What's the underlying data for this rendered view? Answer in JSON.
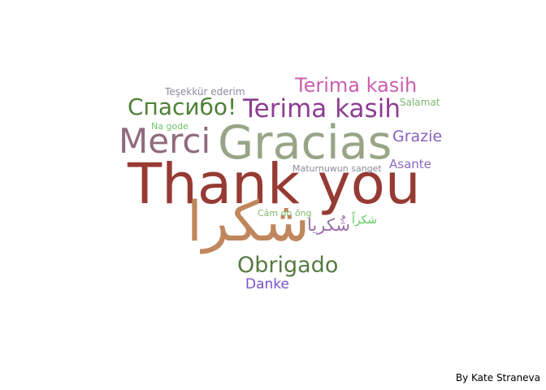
{
  "cloud": {
    "words": [
      {
        "id": "thank-you",
        "text": "Thank you",
        "color": "#963a33"
      },
      {
        "id": "gracias",
        "text": "Gracias",
        "color": "#97a586"
      },
      {
        "id": "arabic-large",
        "text": "شكرا",
        "color": "#c0865c"
      },
      {
        "id": "merci",
        "text": "Merci",
        "color": "#8f6b7f"
      },
      {
        "id": "terima-kasih-1",
        "text": "Terima kasih",
        "color": "#8e3c93"
      },
      {
        "id": "terima-kasih-2",
        "text": "Terima kasih",
        "color": "#c960ad"
      },
      {
        "id": "spasibo",
        "text": "Спасибо!",
        "color": "#4d8036"
      },
      {
        "id": "obrigado",
        "text": "Obrigado",
        "color": "#577a42"
      },
      {
        "id": "grazie",
        "text": "Grazie",
        "color": "#8a60b8"
      },
      {
        "id": "asante",
        "text": "Asante",
        "color": "#8a6bc0"
      },
      {
        "id": "danke",
        "text": "Danke",
        "color": "#7a51c6"
      },
      {
        "id": "urdu",
        "text": "شُکریا",
        "color": "#9a6fa8"
      },
      {
        "id": "tesekkur",
        "text": "Teşekkür ederim",
        "color": "#8f8aa0"
      },
      {
        "id": "salamat",
        "text": "Salamat",
        "color": "#7fb56d"
      },
      {
        "id": "na-gode",
        "text": "Na gode",
        "color": "#6cc46a"
      },
      {
        "id": "maturnuwun",
        "text": "Maturnuwun sanget",
        "color": "#8b8b9a"
      },
      {
        "id": "cam-on-ong",
        "text": "Cảm ơn ông",
        "color": "#82b86c"
      },
      {
        "id": "arabic-small",
        "text": "شكراً",
        "color": "#5ecc5a"
      }
    ]
  },
  "credit": "By Kate Straneva"
}
